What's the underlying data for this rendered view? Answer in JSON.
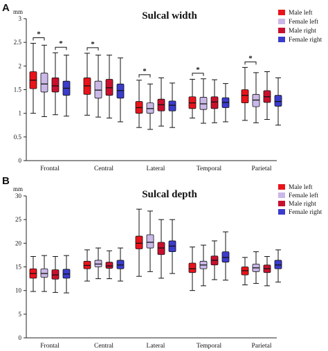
{
  "chart_data": [
    {
      "panel_label": "A",
      "type": "boxplot",
      "title": "Sulcal width",
      "ylabel": "mm",
      "ylim": [
        0,
        3
      ],
      "yticks": [
        "0",
        "0.5",
        "1",
        "1.5",
        "2",
        "2.5",
        "3"
      ],
      "categories": [
        "Frontal",
        "Central",
        "Lateral",
        "Temporal",
        "Parietal"
      ],
      "legend": {
        "position": "top-right"
      },
      "series": [
        {
          "name": "Male left",
          "color": "#e8141b",
          "boxes": [
            {
              "min": 1.0,
              "q1": 1.52,
              "median": 1.7,
              "q3": 1.88,
              "max": 2.48
            },
            {
              "min": 0.96,
              "q1": 1.4,
              "median": 1.58,
              "q3": 1.75,
              "max": 2.27
            },
            {
              "min": 0.7,
              "q1": 1.0,
              "median": 1.12,
              "q3": 1.25,
              "max": 1.7
            },
            {
              "min": 0.9,
              "q1": 1.1,
              "median": 1.22,
              "q3": 1.35,
              "max": 1.72
            },
            {
              "min": 0.85,
              "q1": 1.22,
              "median": 1.38,
              "q3": 1.5,
              "max": 1.97
            }
          ]
        },
        {
          "name": "Female left",
          "color": "#c9b8e8",
          "boxes": [
            {
              "min": 0.93,
              "q1": 1.45,
              "median": 1.62,
              "q3": 1.85,
              "max": 2.44
            },
            {
              "min": 0.92,
              "q1": 1.32,
              "median": 1.49,
              "q3": 1.68,
              "max": 2.23
            },
            {
              "min": 0.66,
              "q1": 1.0,
              "median": 1.1,
              "q3": 1.22,
              "max": 1.62
            },
            {
              "min": 0.79,
              "q1": 1.08,
              "median": 1.2,
              "q3": 1.34,
              "max": 1.73
            },
            {
              "min": 0.8,
              "q1": 1.14,
              "median": 1.28,
              "q3": 1.4,
              "max": 1.86
            }
          ]
        },
        {
          "name": "Male right",
          "color": "#c8102e",
          "boxes": [
            {
              "min": 0.97,
              "q1": 1.45,
              "median": 1.58,
              "q3": 1.75,
              "max": 2.28
            },
            {
              "min": 0.9,
              "q1": 1.38,
              "median": 1.54,
              "q3": 1.72,
              "max": 2.23
            },
            {
              "min": 0.73,
              "q1": 1.05,
              "median": 1.18,
              "q3": 1.3,
              "max": 1.75
            },
            {
              "min": 0.8,
              "q1": 1.1,
              "median": 1.24,
              "q3": 1.35,
              "max": 1.71
            },
            {
              "min": 0.87,
              "q1": 1.23,
              "median": 1.35,
              "q3": 1.48,
              "max": 1.88
            }
          ]
        },
        {
          "name": "Female right",
          "color": "#3b3bcc",
          "boxes": [
            {
              "min": 0.94,
              "q1": 1.38,
              "median": 1.53,
              "q3": 1.68,
              "max": 2.23
            },
            {
              "min": 0.82,
              "q1": 1.32,
              "median": 1.48,
              "q3": 1.62,
              "max": 2.17
            },
            {
              "min": 0.7,
              "q1": 1.05,
              "median": 1.17,
              "q3": 1.26,
              "max": 1.64
            },
            {
              "min": 0.82,
              "q1": 1.12,
              "median": 1.23,
              "q3": 1.33,
              "max": 1.63
            },
            {
              "min": 0.75,
              "q1": 1.15,
              "median": 1.25,
              "q3": 1.38,
              "max": 1.75
            }
          ]
        }
      ],
      "significance": [
        {
          "category": 0,
          "from_series": 0,
          "to_series": 1,
          "label": "*"
        },
        {
          "category": 0,
          "from_series": 2,
          "to_series": 3,
          "label": "*"
        },
        {
          "category": 1,
          "from_series": 0,
          "to_series": 1,
          "label": "*"
        },
        {
          "category": 2,
          "from_series": 0,
          "to_series": 1,
          "label": "*"
        },
        {
          "category": 3,
          "from_series": 0,
          "to_series": 1,
          "label": "*"
        },
        {
          "category": 4,
          "from_series": 0,
          "to_series": 1,
          "label": "*"
        }
      ]
    },
    {
      "panel_label": "B",
      "type": "boxplot",
      "title": "Sulcal depth",
      "ylabel": "mm",
      "ylim": [
        0,
        30
      ],
      "yticks": [
        "0",
        "5",
        "10",
        "15",
        "20",
        "25",
        "30"
      ],
      "categories": [
        "Frontal",
        "Central",
        "Lateral",
        "Temporal",
        "Parietal"
      ],
      "legend": {
        "position": "top-right"
      },
      "series": [
        {
          "name": "Male left",
          "color": "#e8141b",
          "boxes": [
            {
              "min": 9.8,
              "q1": 12.6,
              "median": 13.6,
              "q3": 14.6,
              "max": 17.2
            },
            {
              "min": 12.0,
              "q1": 14.6,
              "median": 15.3,
              "q3": 16.2,
              "max": 18.6
            },
            {
              "min": 13.0,
              "q1": 18.8,
              "median": 20.0,
              "q3": 21.5,
              "max": 27.2
            },
            {
              "min": 10.0,
              "q1": 13.8,
              "median": 14.6,
              "q3": 15.8,
              "max": 19.2
            },
            {
              "min": 11.2,
              "q1": 13.3,
              "median": 14.2,
              "q3": 15.0,
              "max": 17.0
            }
          ]
        },
        {
          "name": "Female left",
          "color": "#c9b8e8",
          "boxes": [
            {
              "min": 9.8,
              "q1": 12.8,
              "median": 13.6,
              "q3": 14.6,
              "max": 17.4
            },
            {
              "min": 12.5,
              "q1": 15.0,
              "median": 15.6,
              "q3": 16.4,
              "max": 19.0
            },
            {
              "min": 14.0,
              "q1": 19.0,
              "median": 20.2,
              "q3": 21.8,
              "max": 26.8
            },
            {
              "min": 11.0,
              "q1": 14.6,
              "median": 15.4,
              "q3": 16.2,
              "max": 19.6
            },
            {
              "min": 11.5,
              "q1": 14.0,
              "median": 14.8,
              "q3": 15.6,
              "max": 18.2
            }
          ]
        },
        {
          "name": "Male right",
          "color": "#c8102e",
          "boxes": [
            {
              "min": 9.6,
              "q1": 12.4,
              "median": 13.3,
              "q3": 14.4,
              "max": 17.2
            },
            {
              "min": 12.5,
              "q1": 14.7,
              "median": 15.2,
              "q3": 16.0,
              "max": 18.4
            },
            {
              "min": 12.6,
              "q1": 17.6,
              "median": 19.0,
              "q3": 20.2,
              "max": 25.0
            },
            {
              "min": 12.3,
              "q1": 15.4,
              "median": 16.4,
              "q3": 17.3,
              "max": 20.5
            },
            {
              "min": 11.0,
              "q1": 13.8,
              "median": 14.6,
              "q3": 15.4,
              "max": 17.2
            }
          ]
        },
        {
          "name": "Female right",
          "color": "#3b3bcc",
          "boxes": [
            {
              "min": 9.5,
              "q1": 12.6,
              "median": 13.5,
              "q3": 14.5,
              "max": 17.4
            },
            {
              "min": 12.0,
              "q1": 14.6,
              "median": 15.4,
              "q3": 16.4,
              "max": 19.0
            },
            {
              "min": 13.6,
              "q1": 18.2,
              "median": 19.4,
              "q3": 20.5,
              "max": 25.0
            },
            {
              "min": 12.2,
              "q1": 16.0,
              "median": 17.0,
              "q3": 18.2,
              "max": 22.4
            },
            {
              "min": 11.8,
              "q1": 14.6,
              "median": 15.4,
              "q3": 16.4,
              "max": 18.6
            }
          ]
        }
      ],
      "significance": []
    }
  ]
}
